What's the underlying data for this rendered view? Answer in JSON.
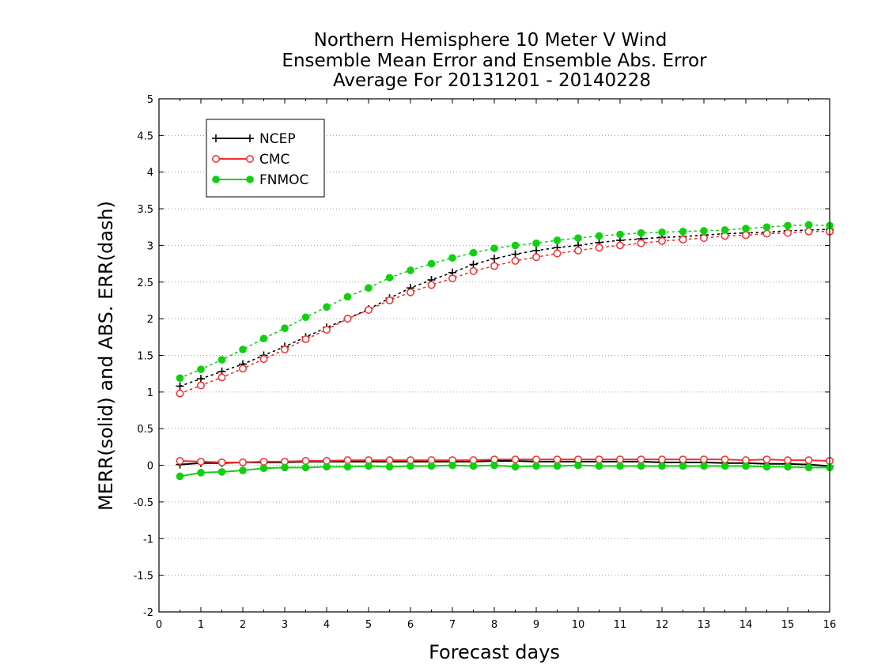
{
  "chart_data": {
    "type": "line",
    "title": [
      "Northern Hemisphere 10 Meter V Wind",
      "Ensemble Mean Error and Ensemble Abs. Error",
      "Average For 20131201 - 20140228"
    ],
    "xlabel": "Forecast days",
    "ylabel": "MERR(solid) and ABS. ERR(dash)",
    "xlim": [
      0,
      16
    ],
    "ylim": [
      -2,
      5
    ],
    "xticks": [
      0,
      1,
      2,
      3,
      4,
      5,
      6,
      7,
      8,
      9,
      10,
      11,
      12,
      13,
      14,
      15,
      16
    ],
    "yticks": [
      -2,
      -1.5,
      -1,
      -0.5,
      0,
      0.5,
      1,
      1.5,
      2,
      2.5,
      3,
      3.5,
      4,
      4.5,
      5
    ],
    "grid": "horizontal dotted",
    "legend_position": "top-left",
    "x": [
      0.5,
      1,
      1.5,
      2,
      2.5,
      3,
      3.5,
      4,
      4.5,
      5,
      5.5,
      6,
      6.5,
      7,
      7.5,
      8,
      8.5,
      9,
      9.5,
      10,
      10.5,
      11,
      11.5,
      12,
      12.5,
      13,
      13.5,
      14,
      14.5,
      15,
      15.5,
      16
    ],
    "series": [
      {
        "name": "NCEP",
        "color": "#000000",
        "marker": "plus",
        "abs_error": [
          1.08,
          1.18,
          1.28,
          1.38,
          1.5,
          1.62,
          1.75,
          1.88,
          2.0,
          2.13,
          2.28,
          2.42,
          2.53,
          2.63,
          2.74,
          2.82,
          2.88,
          2.93,
          2.97,
          3.0,
          3.04,
          3.07,
          3.09,
          3.11,
          3.12,
          3.14,
          3.16,
          3.17,
          3.18,
          3.2,
          3.21,
          3.22
        ],
        "mean_error": [
          0.01,
          0.03,
          0.03,
          0.04,
          0.04,
          0.04,
          0.05,
          0.05,
          0.05,
          0.05,
          0.05,
          0.05,
          0.05,
          0.05,
          0.05,
          0.06,
          0.06,
          0.05,
          0.05,
          0.05,
          0.05,
          0.05,
          0.05,
          0.04,
          0.04,
          0.04,
          0.03,
          0.03,
          0.02,
          0.02,
          0.01,
          -0.01
        ]
      },
      {
        "name": "CMC",
        "color": "#f03030",
        "marker": "open-circle",
        "abs_error": [
          0.98,
          1.09,
          1.2,
          1.32,
          1.45,
          1.58,
          1.72,
          1.85,
          2.0,
          2.12,
          2.25,
          2.36,
          2.46,
          2.55,
          2.65,
          2.72,
          2.79,
          2.84,
          2.89,
          2.93,
          2.97,
          3.0,
          3.03,
          3.06,
          3.08,
          3.1,
          3.13,
          3.14,
          3.16,
          3.17,
          3.19,
          3.19
        ],
        "mean_error": [
          0.06,
          0.05,
          0.04,
          0.04,
          0.05,
          0.05,
          0.06,
          0.06,
          0.07,
          0.07,
          0.07,
          0.07,
          0.07,
          0.07,
          0.07,
          0.08,
          0.08,
          0.08,
          0.08,
          0.08,
          0.08,
          0.08,
          0.08,
          0.08,
          0.08,
          0.08,
          0.08,
          0.07,
          0.08,
          0.07,
          0.07,
          0.06
        ]
      },
      {
        "name": "FNMOC",
        "color": "#10d010",
        "marker": "filled-circle",
        "abs_error": [
          1.19,
          1.31,
          1.44,
          1.58,
          1.73,
          1.87,
          2.02,
          2.16,
          2.3,
          2.42,
          2.56,
          2.66,
          2.75,
          2.83,
          2.9,
          2.96,
          3.0,
          3.03,
          3.07,
          3.1,
          3.13,
          3.15,
          3.17,
          3.18,
          3.19,
          3.2,
          3.21,
          3.23,
          3.25,
          3.27,
          3.28,
          3.27
        ],
        "mean_error": [
          -0.15,
          -0.1,
          -0.09,
          -0.07,
          -0.04,
          -0.03,
          -0.03,
          -0.02,
          -0.02,
          -0.01,
          -0.02,
          -0.01,
          -0.01,
          0.0,
          -0.01,
          0.0,
          -0.02,
          -0.01,
          -0.01,
          0.0,
          -0.01,
          -0.01,
          -0.01,
          -0.01,
          -0.01,
          -0.01,
          -0.01,
          -0.01,
          -0.02,
          -0.02,
          -0.03,
          -0.03
        ]
      }
    ]
  }
}
